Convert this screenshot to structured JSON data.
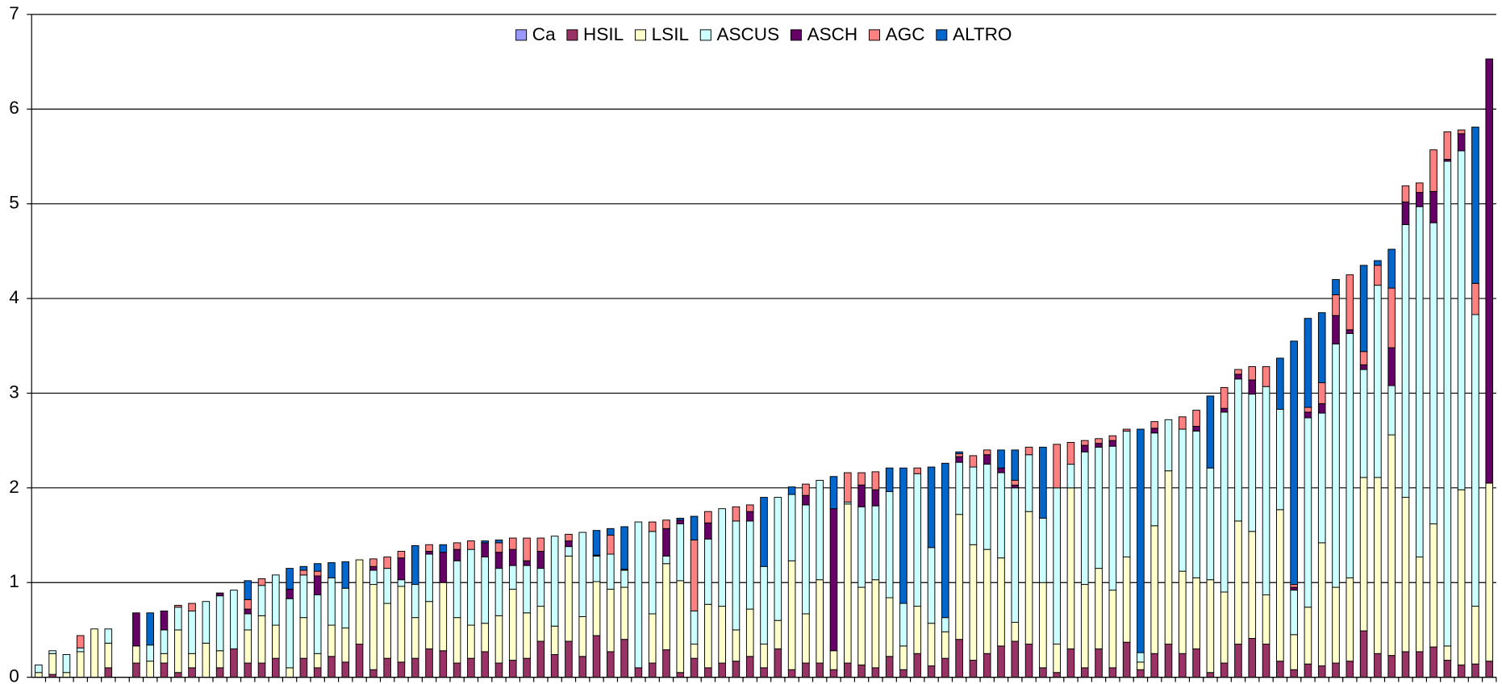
{
  "chart_data": {
    "type": "stacked_bar",
    "categories": [
      null,
      null,
      null,
      null,
      null,
      null,
      null,
      null,
      null,
      null,
      null,
      null,
      null,
      null,
      null,
      null,
      null,
      null,
      null,
      null,
      null,
      null,
      null,
      null,
      null,
      null,
      null,
      null,
      null,
      null,
      null,
      null,
      null,
      null,
      null,
      null,
      null,
      null,
      null,
      null,
      null,
      null,
      null,
      null,
      null,
      null,
      null,
      null,
      null,
      null,
      null,
      null,
      null,
      null,
      null,
      null,
      null,
      null,
      null,
      null,
      null,
      null,
      null,
      null,
      null,
      null,
      null,
      null,
      null,
      null,
      null,
      null,
      null,
      null,
      null,
      null,
      null,
      null,
      null,
      null,
      null,
      null,
      null,
      null,
      null,
      null,
      null,
      null,
      null,
      null,
      null,
      null,
      null,
      null,
      null,
      null,
      null,
      null,
      null,
      null,
      null,
      null,
      null,
      null,
      null
    ],
    "series": [
      {
        "name": "Ca",
        "color": "#9999ff",
        "values": [
          0,
          0,
          0,
          0,
          0,
          0,
          0,
          0,
          0,
          0,
          0,
          0,
          0,
          0,
          0,
          0,
          0,
          0,
          0,
          0,
          0,
          0,
          0,
          0,
          0,
          0,
          0,
          0,
          0,
          0,
          0,
          0,
          0,
          0,
          0,
          0,
          0,
          0,
          0,
          0,
          0,
          0,
          0,
          0,
          0,
          0,
          0,
          0,
          0,
          0,
          0,
          0,
          0,
          0,
          0,
          0,
          0,
          0,
          0,
          0,
          0,
          0,
          0,
          0,
          0,
          0,
          0,
          0,
          0,
          0,
          0,
          0,
          0,
          0,
          0,
          0,
          0,
          0,
          0,
          0,
          0,
          0,
          0,
          0,
          0,
          0,
          0,
          0,
          0,
          0,
          0,
          0,
          0,
          0,
          0,
          0,
          0,
          0,
          0,
          0,
          0,
          0,
          0,
          0,
          0
        ]
      },
      {
        "name": "HSIL",
        "color": "#993366",
        "values": [
          0,
          0.03,
          0,
          0,
          0,
          0.1,
          0,
          0.15,
          0,
          0.15,
          0.05,
          0.1,
          0,
          0.1,
          0.3,
          0.15,
          0.15,
          0.2,
          0,
          0.2,
          0.1,
          0.22,
          0.16,
          0.35,
          0.08,
          0.2,
          0.16,
          0.2,
          0.3,
          0.28,
          0.15,
          0.2,
          0.27,
          0.15,
          0.18,
          0.2,
          0.38,
          0.24,
          0.38,
          0.22,
          0.44,
          0.27,
          0.4,
          0.1,
          0.15,
          0.29,
          0.05,
          0.2,
          0.1,
          0.15,
          0.17,
          0.22,
          0.1,
          0.3,
          0.08,
          0.15,
          0.15,
          0.08,
          0.15,
          0.13,
          0.1,
          0.22,
          0.08,
          0.25,
          0.12,
          0.2,
          0.4,
          0.18,
          0.25,
          0.33,
          0.38,
          0.35,
          0.1,
          0.05,
          0.3,
          0.1,
          0.3,
          0.1,
          0.37,
          0.08,
          0.25,
          0.35,
          0.25,
          0.3,
          0.05,
          0.15,
          0.35,
          0.41,
          0.35,
          0.17,
          0.08,
          0.14,
          0.12,
          0.15,
          0.17,
          0.49,
          0.25,
          0.23,
          0.27,
          0.27,
          0.32,
          0.18,
          0.13,
          0.14,
          0.17
        ]
      },
      {
        "name": "LSIL",
        "color": "#ffffcc",
        "values": [
          0.05,
          0.22,
          0.05,
          0.27,
          0.51,
          0.26,
          0,
          0.18,
          0.17,
          0.1,
          0.45,
          0.15,
          0.36,
          0.18,
          0,
          0.35,
          0.5,
          0.35,
          0.1,
          0.43,
          0.15,
          0.33,
          0.36,
          0.89,
          0.9,
          0.58,
          0.8,
          0.43,
          0.5,
          0.72,
          0.48,
          0.35,
          0.3,
          0.5,
          0.75,
          0.48,
          0.37,
          0.3,
          0.9,
          0.42,
          0.57,
          0.66,
          0.55,
          0,
          0.52,
          0.91,
          0.97,
          0.15,
          0.67,
          0.6,
          0.33,
          0.5,
          0.25,
          0.3,
          1.15,
          0.52,
          0.88,
          0.2,
          1.68,
          0.82,
          0.93,
          0.62,
          0.25,
          0.5,
          0.45,
          0.28,
          1.32,
          1.22,
          1.1,
          0.93,
          0.2,
          1.4,
          0.9,
          0.3,
          1.7,
          0.88,
          0.85,
          0.82,
          0.9,
          0.08,
          1.35,
          1.83,
          0.87,
          0.75,
          0.98,
          0.75,
          1.3,
          1.13,
          0.52,
          1.6,
          0.37,
          0.6,
          1.3,
          0.8,
          0.88,
          1.62,
          1.86,
          2.33,
          1.63,
          1.0,
          1.3,
          0.15,
          1.85,
          0.61,
          1.88
        ]
      },
      {
        "name": "ASCUS",
        "color": "#ccffff",
        "values": [
          0.08,
          0.03,
          0.19,
          0.04,
          0,
          0.15,
          0,
          0,
          0.17,
          0.25,
          0.24,
          0.45,
          0.44,
          0.58,
          0.62,
          0.17,
          0.32,
          0.53,
          0.73,
          0.45,
          0.62,
          0.5,
          0.42,
          0,
          0.15,
          0.37,
          0.07,
          0.35,
          0.5,
          0,
          0.6,
          0.8,
          0.7,
          0.5,
          0.25,
          0.5,
          0.4,
          0.95,
          0.1,
          0.89,
          0.27,
          0.37,
          0.18,
          1.54,
          0.87,
          0.08,
          0.6,
          0.35,
          0.69,
          1.03,
          1.15,
          0.93,
          0.82,
          1.3,
          0.7,
          1.15,
          1.05,
          0,
          0.02,
          0.85,
          0.78,
          1.12,
          0.45,
          1.4,
          0.8,
          0.15,
          0.55,
          0.82,
          0.9,
          0.9,
          1.42,
          0.6,
          0.68,
          1.65,
          0.25,
          1.4,
          1.28,
          1.52,
          1.33,
          0.1,
          0.98,
          0.54,
          1.5,
          1.55,
          1.18,
          1.9,
          1.5,
          1.45,
          2.2,
          1.06,
          0.47,
          2.0,
          1.37,
          2.57,
          2.58,
          1.14,
          2.03,
          0.52,
          2.88,
          3.7,
          3.18,
          5.12,
          3.58,
          3.08,
          0
        ]
      },
      {
        "name": "ASCH",
        "color": "#660066",
        "values": [
          0,
          0,
          0,
          0,
          0,
          0,
          0,
          0.35,
          0,
          0.2,
          0,
          0,
          0,
          0.03,
          0,
          0.05,
          0,
          0,
          0.1,
          0,
          0.2,
          0,
          0,
          0,
          0.04,
          0,
          0.23,
          0,
          0.03,
          0.32,
          0.12,
          0,
          0.15,
          0.17,
          0.17,
          0.05,
          0.18,
          0,
          0.06,
          0,
          0.01,
          0,
          0.01,
          0,
          0,
          0.29,
          0.04,
          0,
          0.17,
          0,
          0,
          0.1,
          0,
          0,
          0,
          0.1,
          0,
          1.5,
          0,
          0.23,
          0.17,
          0,
          0,
          0,
          0,
          0,
          0.06,
          0,
          0.1,
          0.05,
          0.03,
          0,
          0,
          0,
          0,
          0.07,
          0.04,
          0.06,
          0,
          0,
          0.05,
          0,
          0,
          0.05,
          0,
          0.04,
          0.05,
          0.15,
          0,
          0,
          0.03,
          0.06,
          0.1,
          0.3,
          0.04,
          0.05,
          0,
          0.4,
          0.24,
          0.15,
          0.33,
          0.02,
          0.18,
          0,
          4.48
        ]
      },
      {
        "name": "AGC",
        "color": "#ff8080",
        "values": [
          0,
          0,
          0,
          0.13,
          0,
          0,
          0,
          0,
          0,
          0,
          0.02,
          0.08,
          0,
          0,
          0,
          0.1,
          0.07,
          0,
          0,
          0.05,
          0.05,
          0,
          0,
          0,
          0.08,
          0.12,
          0.07,
          0,
          0.07,
          0,
          0.07,
          0.09,
          0,
          0.1,
          0.12,
          0.24,
          0.14,
          0,
          0.07,
          0,
          0,
          0.2,
          0,
          0,
          0.1,
          0.09,
          0,
          0.75,
          0.12,
          0,
          0.15,
          0.07,
          0,
          0,
          0,
          0.12,
          0,
          0,
          0.31,
          0.13,
          0.19,
          0,
          0,
          0.06,
          0,
          0,
          0.03,
          0.12,
          0.05,
          0,
          0.05,
          0.08,
          0,
          0.46,
          0.23,
          0.05,
          0.05,
          0.05,
          0.02,
          0,
          0.07,
          0,
          0.13,
          0.17,
          0,
          0.22,
          0.05,
          0.14,
          0.21,
          0,
          0.03,
          0.05,
          0.22,
          0.22,
          0.58,
          0.14,
          0.21,
          0.63,
          0.17,
          0.1,
          0.44,
          0.29,
          0.04,
          0.33,
          0
        ]
      },
      {
        "name": "ALTRO",
        "color": "#0066cc",
        "values": [
          0,
          0,
          0,
          0,
          0,
          0,
          0,
          0,
          0.34,
          0,
          0,
          0,
          0,
          0,
          0,
          0.2,
          0,
          0,
          0.22,
          0.04,
          0.08,
          0.16,
          0.28,
          0,
          0,
          0,
          0,
          0.41,
          0,
          0.08,
          0,
          0,
          0.02,
          0.03,
          0,
          0,
          0,
          0,
          0,
          0,
          0.26,
          0.07,
          0.45,
          0,
          0,
          0,
          0.02,
          0.25,
          0,
          0,
          0,
          0,
          0.73,
          0,
          0.08,
          0,
          0,
          0.34,
          0,
          0,
          0,
          0.25,
          1.43,
          0,
          0.85,
          1.63,
          0.02,
          0,
          0,
          0.19,
          0.32,
          0,
          0.75,
          0,
          0,
          0,
          0,
          0,
          0,
          2.36,
          0,
          0,
          0,
          0,
          0.76,
          0,
          0,
          0,
          0,
          0.54,
          2.57,
          0.94,
          0.74,
          0.16,
          0,
          0.91,
          0.05,
          0.41,
          0,
          0,
          0,
          0,
          0,
          1.65,
          0
        ]
      }
    ],
    "ylim": [
      0,
      7
    ],
    "yticks": [
      0,
      1,
      2,
      3,
      4,
      5,
      6,
      7
    ],
    "grid": true,
    "legend": "top"
  }
}
